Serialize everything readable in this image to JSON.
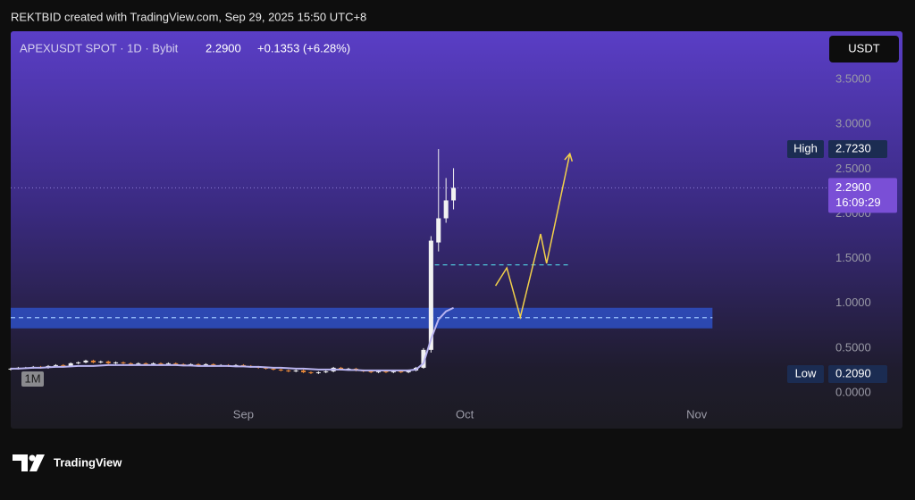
{
  "header": {
    "credit": "REKTBID created with TradingView.com, Sep 29, 2025 15:50 UTC+8"
  },
  "legend": {
    "symbol": "APEXUSDT SPOT · 1D · Bybit",
    "price": "2.2900",
    "change": "+0.1353 (+6.28%)"
  },
  "currency_button": "USDT",
  "interval_badge": "1M",
  "footer_logo": "TradingView",
  "chart_data": {
    "type": "candlestick",
    "xlim": [
      0,
      108.7
    ],
    "xticks": [
      {
        "value": 31,
        "label": "Sep"
      },
      {
        "value": 60.5,
        "label": "Oct"
      },
      {
        "value": 91.4,
        "label": "Nov"
      }
    ],
    "ylim": [
      -0.15,
      4.04
    ],
    "yticks": [
      {
        "value": 0,
        "label": "0.0000"
      },
      {
        "value": 0.5,
        "label": "0.5000"
      },
      {
        "value": 1,
        "label": "1.0000"
      },
      {
        "value": 1.5,
        "label": "1.5000"
      },
      {
        "value": 2,
        "label": "2.0000"
      },
      {
        "value": 2.5,
        "label": "2.5000"
      },
      {
        "value": 3,
        "label": "3.0000"
      },
      {
        "value": 3.5,
        "label": "3.5000"
      }
    ],
    "up_color": "#f2f2f2",
    "down_color": "#e8893a",
    "x": [
      0,
      1,
      2,
      3,
      4,
      5,
      6,
      7,
      8,
      9,
      10,
      11,
      12,
      13,
      14,
      15,
      16,
      17,
      18,
      19,
      20,
      21,
      22,
      23,
      24,
      25,
      26,
      27,
      28,
      29,
      30,
      31,
      32,
      33,
      34,
      35,
      36,
      37,
      38,
      39,
      40,
      41,
      42,
      43,
      44,
      45,
      46,
      47,
      48,
      49,
      50,
      51,
      52,
      53,
      54,
      55,
      56,
      57,
      58,
      59
    ],
    "open": [
      0.26,
      0.27,
      0.28,
      0.28,
      0.29,
      0.28,
      0.3,
      0.31,
      0.3,
      0.33,
      0.34,
      0.36,
      0.34,
      0.35,
      0.33,
      0.34,
      0.33,
      0.32,
      0.33,
      0.32,
      0.33,
      0.32,
      0.33,
      0.32,
      0.31,
      0.32,
      0.31,
      0.32,
      0.31,
      0.31,
      0.3,
      0.31,
      0.3,
      0.29,
      0.28,
      0.27,
      0.26,
      0.25,
      0.24,
      0.25,
      0.23,
      0.22,
      0.23,
      0.24,
      0.28,
      0.26,
      0.27,
      0.25,
      0.24,
      0.23,
      0.24,
      0.23,
      0.24,
      0.23,
      0.25,
      0.28,
      0.48,
      1.68,
      1.95,
      2.15
    ],
    "high": [
      0.28,
      0.29,
      0.29,
      0.3,
      0.3,
      0.31,
      0.32,
      0.32,
      0.34,
      0.35,
      0.37,
      0.37,
      0.36,
      0.36,
      0.35,
      0.35,
      0.34,
      0.34,
      0.34,
      0.34,
      0.34,
      0.34,
      0.34,
      0.33,
      0.33,
      0.33,
      0.33,
      0.33,
      0.32,
      0.32,
      0.32,
      0.32,
      0.31,
      0.3,
      0.29,
      0.28,
      0.27,
      0.26,
      0.26,
      0.26,
      0.24,
      0.24,
      0.25,
      0.29,
      0.29,
      0.28,
      0.28,
      0.26,
      0.25,
      0.25,
      0.25,
      0.25,
      0.25,
      0.26,
      0.29,
      0.5,
      1.75,
      2.723,
      2.4,
      2.51
    ],
    "low": [
      0.25,
      0.26,
      0.27,
      0.27,
      0.27,
      0.27,
      0.29,
      0.29,
      0.29,
      0.32,
      0.33,
      0.33,
      0.33,
      0.32,
      0.32,
      0.32,
      0.31,
      0.31,
      0.31,
      0.31,
      0.31,
      0.31,
      0.31,
      0.3,
      0.3,
      0.3,
      0.3,
      0.3,
      0.3,
      0.29,
      0.29,
      0.29,
      0.28,
      0.27,
      0.26,
      0.25,
      0.24,
      0.23,
      0.23,
      0.22,
      0.209,
      0.21,
      0.22,
      0.23,
      0.25,
      0.25,
      0.24,
      0.23,
      0.22,
      0.22,
      0.22,
      0.22,
      0.22,
      0.22,
      0.24,
      0.27,
      0.45,
      1.58,
      1.9,
      2.05
    ],
    "close": [
      0.27,
      0.28,
      0.28,
      0.29,
      0.28,
      0.3,
      0.31,
      0.3,
      0.33,
      0.34,
      0.36,
      0.34,
      0.35,
      0.33,
      0.34,
      0.33,
      0.32,
      0.33,
      0.32,
      0.33,
      0.32,
      0.33,
      0.32,
      0.31,
      0.32,
      0.31,
      0.32,
      0.31,
      0.31,
      0.3,
      0.31,
      0.3,
      0.29,
      0.28,
      0.27,
      0.26,
      0.25,
      0.24,
      0.25,
      0.23,
      0.22,
      0.23,
      0.24,
      0.28,
      0.26,
      0.27,
      0.25,
      0.24,
      0.23,
      0.24,
      0.23,
      0.24,
      0.23,
      0.25,
      0.28,
      0.48,
      1.7,
      1.95,
      2.15,
      2.29
    ],
    "moving_average": {
      "color": "#b9b4f0",
      "values": [
        0.27,
        0.27,
        0.275,
        0.28,
        0.28,
        0.285,
        0.29,
        0.29,
        0.295,
        0.3,
        0.3,
        0.3,
        0.305,
        0.31,
        0.31,
        0.31,
        0.31,
        0.31,
        0.31,
        0.31,
        0.31,
        0.31,
        0.31,
        0.305,
        0.305,
        0.3,
        0.3,
        0.3,
        0.3,
        0.3,
        0.295,
        0.295,
        0.29,
        0.29,
        0.285,
        0.28,
        0.28,
        0.275,
        0.27,
        0.27,
        0.265,
        0.26,
        0.26,
        0.26,
        0.26,
        0.255,
        0.255,
        0.25,
        0.25,
        0.25,
        0.25,
        0.25,
        0.25,
        0.25,
        0.26,
        0.33,
        0.6,
        0.82,
        0.91,
        0.95
      ]
    },
    "zone": {
      "low": 0.72,
      "high": 0.95,
      "mid": 0.84,
      "x": [
        0,
        93.5
      ],
      "color": "#2f55d4"
    },
    "level_line": {
      "value": 1.43,
      "x": [
        56.5,
        74.5
      ],
      "color": "#4fc3d9"
    },
    "projection": {
      "color": "#f2d04a",
      "x": [
        64.6,
        66.1,
        67.9,
        70.6,
        71.4,
        74.5
      ],
      "values": [
        1.196,
        1.396,
        0.847,
        1.775,
        1.446,
        2.672
      ]
    },
    "high_label": {
      "name": "High",
      "value": 2.723,
      "label": "2.7230"
    },
    "low_label": {
      "name": "Low",
      "value": 0.209,
      "label": "0.2090"
    },
    "last_price": {
      "value": 2.29,
      "label": "2.2900",
      "countdown": "16:09:29",
      "color": "#7a4fd6"
    }
  }
}
